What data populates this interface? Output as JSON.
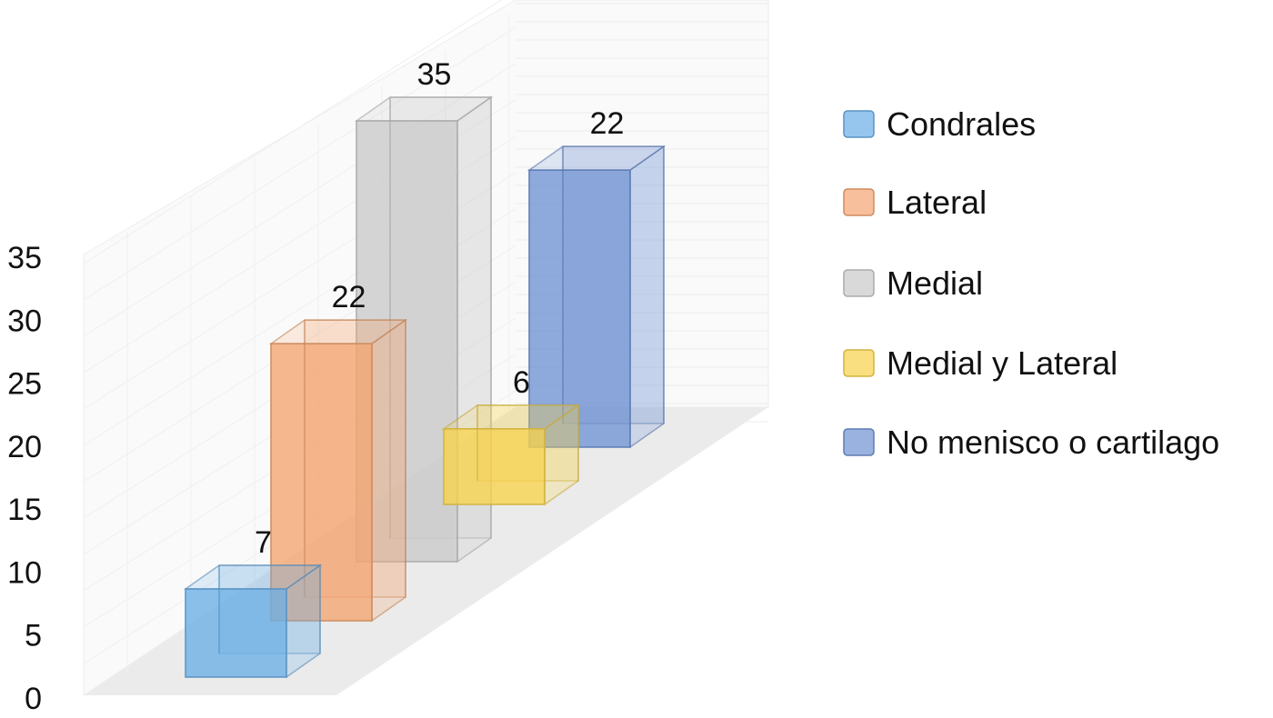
{
  "chart_data": {
    "type": "bar",
    "categories": [
      "Condrales",
      "Lateral",
      "Medial",
      "Medial y Lateral",
      "No menisco o cartilago"
    ],
    "values": [
      7,
      22,
      35,
      6,
      22
    ],
    "data_labels": [
      "7",
      "22",
      "35",
      "6",
      "22"
    ],
    "ylim": [
      0,
      35
    ],
    "yticks": [
      "0",
      "5",
      "10",
      "15",
      "20",
      "25",
      "30",
      "35"
    ],
    "grid": true,
    "projection": "3d",
    "legend_position": "right",
    "series": [
      {
        "name": "Condrales",
        "value": 7,
        "color": "#6aaee6"
      },
      {
        "name": "Lateral",
        "value": 22,
        "color": "#f3a470"
      },
      {
        "name": "Medial",
        "value": 35,
        "color": "#c9c9c9"
      },
      {
        "name": "Medial y Lateral",
        "value": 6,
        "color": "#f7d24a"
      },
      {
        "name": "No menisco o cartilago",
        "value": 22,
        "color": "#6f92d2"
      }
    ]
  }
}
